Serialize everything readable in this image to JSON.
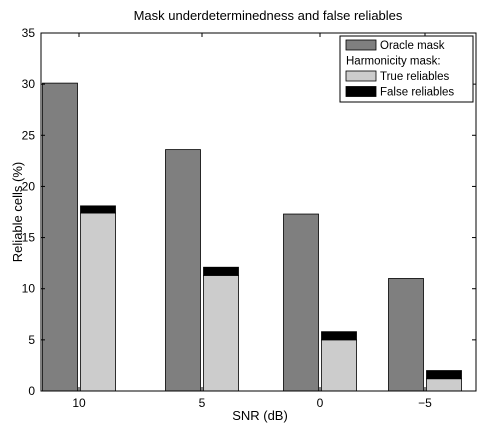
{
  "chart_data": {
    "type": "bar",
    "title": "Mask underdeterminedness and false reliables",
    "xlabel": "SNR (dB)",
    "ylabel": "Reliable cells (%)",
    "categories": [
      "10",
      "5",
      "0",
      "−5"
    ],
    "ylim": [
      0,
      35
    ],
    "yticks": [
      "0",
      "5",
      "10",
      "15",
      "20",
      "25",
      "30",
      "35"
    ],
    "grid": false,
    "legend_position": "top-right",
    "legend": {
      "items": [
        {
          "label": "Oracle mask",
          "color": "#7f7f7f",
          "swatch": true
        },
        {
          "label": "Harmonicity mask:",
          "swatch": false
        },
        {
          "label": "True reliables",
          "color": "#cccccc",
          "swatch": true
        },
        {
          "label": "False reliables",
          "color": "#000000",
          "swatch": true
        }
      ]
    },
    "series": [
      {
        "name": "Oracle mask",
        "color": "#7f7f7f",
        "values": [
          30.1,
          23.6,
          17.3,
          11.0
        ]
      },
      {
        "name": "True reliables",
        "color": "#cccccc",
        "values": [
          17.4,
          11.3,
          5.0,
          1.2
        ]
      },
      {
        "name": "False reliables",
        "color": "#000000",
        "values": [
          0.7,
          0.8,
          0.8,
          0.8
        ]
      }
    ]
  }
}
